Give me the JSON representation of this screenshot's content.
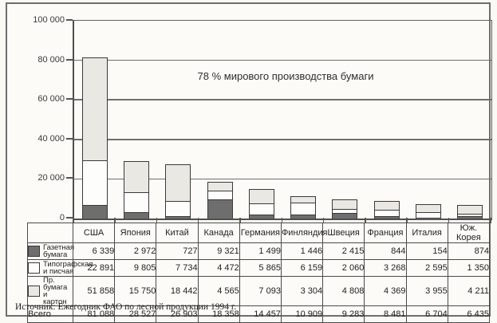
{
  "chart_data": {
    "type": "bar",
    "stacked": true,
    "annotation": "78 % мирового производства бумаги",
    "categories": [
      "США",
      "Япония",
      "Китай",
      "Канада",
      "Германия",
      "Финляндия",
      "Швеция",
      "Франция",
      "Италия",
      "Юж. Корея"
    ],
    "series": [
      {
        "name": "Газетная бумага",
        "color": "#6e6e6e",
        "values": [
          6339,
          2972,
          727,
          9321,
          1499,
          1446,
          2415,
          844,
          154,
          874
        ]
      },
      {
        "name": "Типографская и писчая",
        "color": "#fdfdfb",
        "values": [
          22891,
          9805,
          7734,
          4472,
          5865,
          6159,
          2060,
          3268,
          2595,
          1350
        ]
      },
      {
        "name": "Пр. бумага и картон",
        "color": "#eae8e2",
        "values": [
          51858,
          15750,
          18442,
          4565,
          7093,
          3304,
          4808,
          4369,
          3955,
          4211
        ]
      }
    ],
    "totals": {
      "label": "Всего",
      "values": [
        81088,
        28527,
        26903,
        18358,
        14457,
        10909,
        9283,
        8481,
        6704,
        6435
      ]
    },
    "ylim": [
      0,
      100000
    ],
    "ytick_step": 20000,
    "ytick_labels": [
      "0",
      "20 000",
      "40 000",
      "60 000",
      "80 000",
      "100 000"
    ],
    "grid": true,
    "legend_position": "table-left"
  },
  "table": {
    "header": [
      "США",
      "Япония",
      "Китай",
      "Канада",
      "Германия",
      "Финляндия",
      "Швеция",
      "Франция",
      "Италия",
      "Юж. Корея"
    ],
    "rows": [
      {
        "label_lines": [
          "Газетная",
          "бумага"
        ],
        "swatch_series": 0,
        "values": [
          "6 339",
          "2 972",
          "727",
          "9 321",
          "1 499",
          "1 446",
          "2 415",
          "844",
          "154",
          "874"
        ]
      },
      {
        "label_lines": [
          "Типографская",
          "и писчая"
        ],
        "swatch_series": 1,
        "values": [
          "22 891",
          "9 805",
          "7 734",
          "4 472",
          "5 865",
          "6 159",
          "2 060",
          "3 268",
          "2 595",
          "1 350"
        ]
      },
      {
        "label_lines": [
          "Пр. бумага",
          "и картон"
        ],
        "swatch_series": 2,
        "values": [
          "51 858",
          "15 750",
          "18 442",
          "4 565",
          "7 093",
          "3 304",
          "4 808",
          "4 369",
          "3 955",
          "4 211"
        ]
      },
      {
        "label_lines": [
          "Всего"
        ],
        "swatch_series": null,
        "is_total": true,
        "values": [
          "81 088",
          "28 527",
          "26 903",
          "18 358",
          "14 457",
          "10 909",
          "9 283",
          "8 481",
          "6 704",
          "6 435"
        ]
      }
    ]
  },
  "source": "Источник: Ежегодник ФАО по лесной продукции 1994 г."
}
